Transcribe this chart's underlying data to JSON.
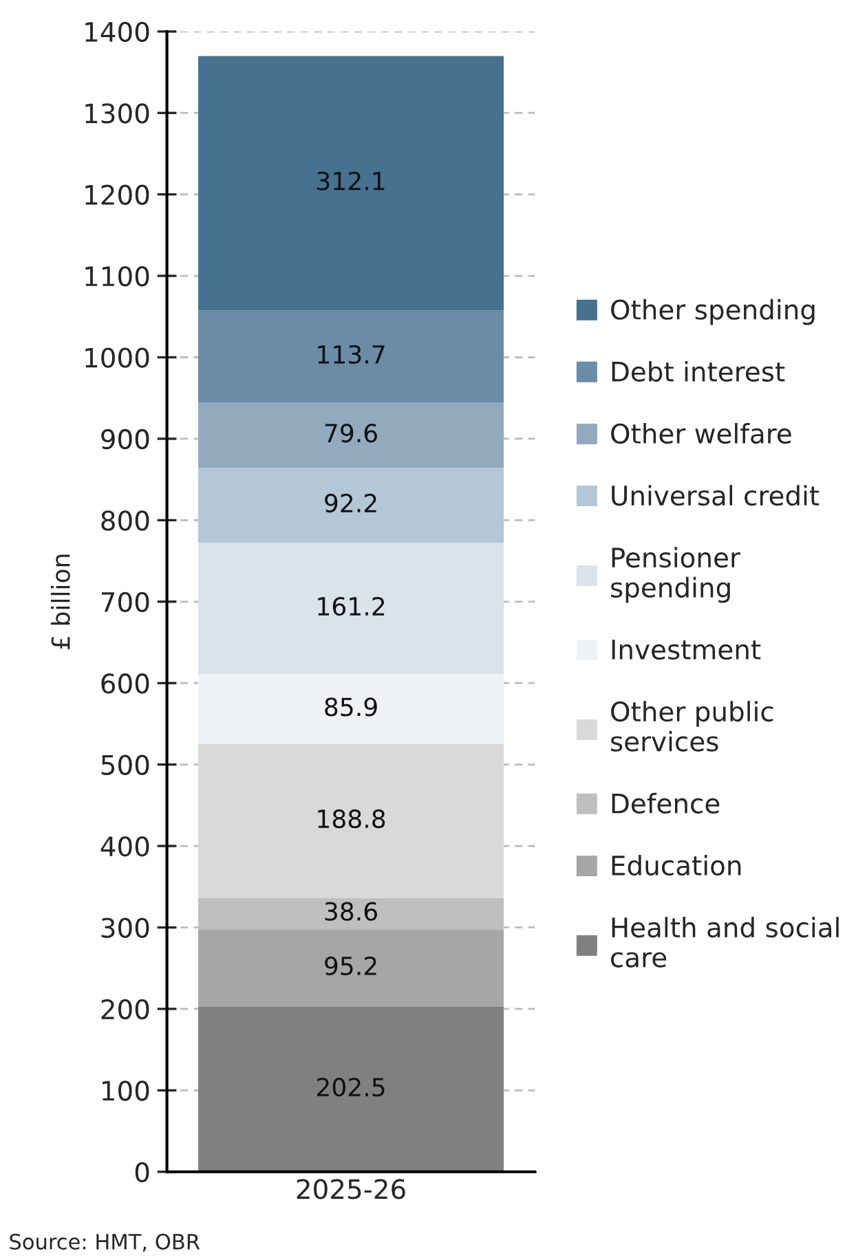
{
  "chart_data": {
    "type": "bar",
    "stacked": true,
    "ylabel": "£ billion",
    "categories": [
      "2025-26"
    ],
    "series": [
      {
        "name": "Health and social care",
        "color": "#808080",
        "values": [
          202.5
        ]
      },
      {
        "name": "Education",
        "color": "#a6a6a6",
        "values": [
          95.2
        ]
      },
      {
        "name": "Defence",
        "color": "#bfbfbf",
        "values": [
          38.6
        ]
      },
      {
        "name": "Other public services",
        "color": "#d9d9d9",
        "values": [
          188.8
        ]
      },
      {
        "name": "Investment",
        "color": "#eef2f6",
        "values": [
          85.9
        ]
      },
      {
        "name": "Pensioner spending",
        "color": "#dae2ea",
        "values": [
          161.2
        ]
      },
      {
        "name": "Universal credit",
        "color": "#b4c7d6",
        "values": [
          92.2
        ]
      },
      {
        "name": "Other welfare",
        "color": "#91aabe",
        "values": [
          79.6
        ]
      },
      {
        "name": "Debt interest",
        "color": "#6a8ca7",
        "values": [
          113.7
        ]
      },
      {
        "name": "Other spending",
        "color": "#46718f",
        "values": [
          312.1
        ]
      }
    ],
    "ylim": [
      0,
      1400
    ],
    "yticks": [
      0,
      100,
      200,
      300,
      400,
      500,
      600,
      700,
      800,
      900,
      1000,
      1100,
      1200,
      1300,
      1400
    ],
    "grid": "y",
    "data_labels": true,
    "legend": "right",
    "annotations": [
      "Source: HMT, OBR"
    ]
  }
}
